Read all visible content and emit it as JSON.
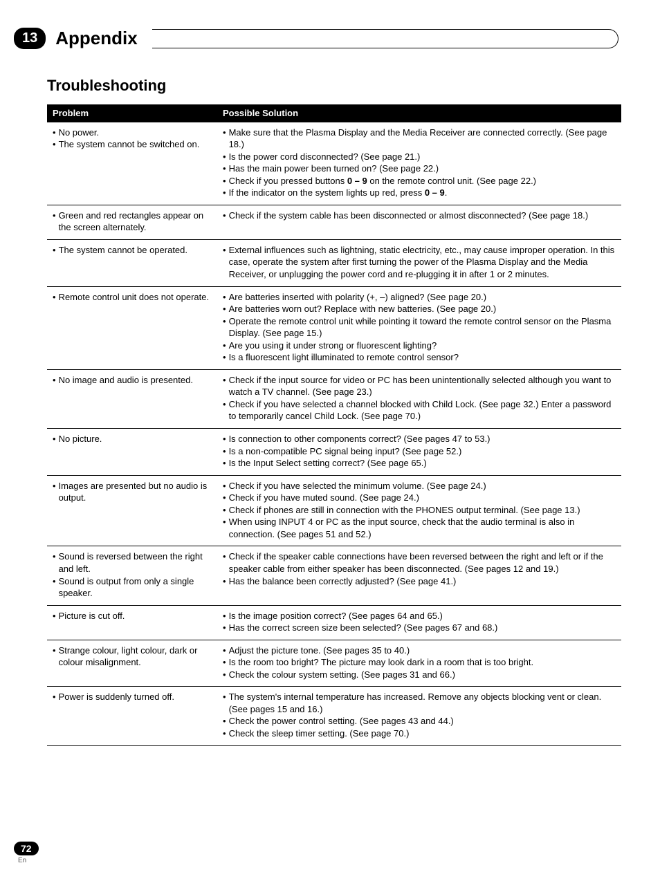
{
  "chapter": {
    "number": "13",
    "title": "Appendix"
  },
  "section_title": "Troubleshooting",
  "table": {
    "columns": [
      "Problem",
      "Possible Solution"
    ],
    "rows": [
      {
        "problem": [
          "No power.",
          "The system cannot be switched on."
        ],
        "solution": [
          {
            "t": "Make sure that the Plasma Display and the Media Receiver are connected correctly. (See page 18.)",
            "indent_after_first": true
          },
          {
            "t": "Is the power cord disconnected? (See page 21.)"
          },
          {
            "t": "Has the main power been turned on? (See page 22.)"
          },
          {
            "t_html": "Check if you pressed buttons <b>0 – 9</b> on the remote control unit. (See page 22.)"
          },
          {
            "t_html": "If the indicator on the system lights up red, press <b>0 – 9</b>."
          }
        ]
      },
      {
        "problem": [
          "Green and red rectangles appear on the screen alternately."
        ],
        "solution": [
          {
            "t": "Check if the system cable has been disconnected or almost disconnected? (See page 18.)"
          }
        ]
      },
      {
        "problem": [
          "The system cannot be operated."
        ],
        "solution": [
          {
            "t": "External influences such as lightning, static electricity, etc., may cause improper operation. In this case, operate the system after first turning the power of the Plasma Display and the Media Receiver, or unplugging the power cord and re-plugging it in after 1 or 2 minutes.",
            "indent_after_first": true
          }
        ]
      },
      {
        "problem": [
          "Remote control unit does not operate."
        ],
        "solution": [
          {
            "t": "Are batteries inserted with polarity (+, –) aligned? (See page 20.)"
          },
          {
            "t": "Are batteries worn out? Replace with new batteries. (See page 20.)"
          },
          {
            "t": "Operate the remote control unit while pointing it toward the remote control sensor on the Plasma Display. (See page 15.)",
            "indent_after_first": true
          },
          {
            "t": "Are you using it under strong or fluorescent lighting?"
          },
          {
            "t": "Is a fluorescent light illuminated to remote control sensor?"
          }
        ]
      },
      {
        "problem": [
          "No image and audio is presented."
        ],
        "solution": [
          {
            "t": "Check if the input source for video or PC has been unintentionally selected although you want to watch a TV channel. (See page 23.)",
            "indent_after_first": true
          },
          {
            "t": "Check if you have selected a channel blocked with Child Lock. (See page 32.) Enter a password to temporarily cancel Child Lock. (See page 70.)",
            "indent_after_first": true
          }
        ]
      },
      {
        "problem": [
          "No picture."
        ],
        "solution": [
          {
            "t": "Is connection to other components correct? (See pages 47 to 53.)"
          },
          {
            "t": "Is a non-compatible PC signal being input? (See page 52.)"
          },
          {
            "t": "Is the Input Select setting correct? (See page 65.)"
          }
        ]
      },
      {
        "problem": [
          "Images are presented but no audio is output."
        ],
        "solution": [
          {
            "t": "Check if you have selected the minimum volume. (See page 24.)"
          },
          {
            "t": "Check if you have muted sound. (See page 24.)"
          },
          {
            "t": "Check if phones are still in connection with the PHONES output terminal. (See page 13.)"
          },
          {
            "t": "When using INPUT 4 or PC as the input source, check that the audio terminal is also in connection. (See pages 51 and 52.)",
            "indent_after_first": true
          }
        ]
      },
      {
        "problem": [
          "Sound is reversed between the right and left.",
          "Sound is output from only a single speaker."
        ],
        "solution": [
          {
            "t": "Check if the speaker cable connections have been reversed between the right and left or if the speaker cable from either speaker has been disconnected. (See pages 12 and 19.)",
            "indent_after_first": true
          },
          {
            "t": "Has the balance been correctly adjusted? (See page 41.)"
          }
        ]
      },
      {
        "problem": [
          "Picture is cut off."
        ],
        "solution": [
          {
            "t": "Is the image position correct? (See pages 64 and 65.)"
          },
          {
            "t": "Has the correct screen size been selected? (See pages 67 and 68.)"
          }
        ]
      },
      {
        "problem": [
          "Strange colour, light colour, dark or colour misalignment."
        ],
        "solution": [
          {
            "t": "Adjust the picture tone. (See pages 35 to 40.)"
          },
          {
            "t": "Is the room too bright? The picture may look dark in a room that is too bright."
          },
          {
            "t": "Check the colour system setting. (See pages 31 and 66.)"
          }
        ]
      },
      {
        "problem": [
          "Power is suddenly turned off."
        ],
        "solution": [
          {
            "t": "The system's internal temperature has increased. Remove any objects blocking vent or clean. (See pages 15 and 16.)",
            "indent_after_first": true
          },
          {
            "t": "Check the power control setting. (See pages 43 and 44.)"
          },
          {
            "t": "Check the sleep timer setting. (See page 70.)"
          }
        ]
      }
    ]
  },
  "footer": {
    "page_number": "72",
    "lang": "En"
  },
  "style": {
    "background_color": "#ffffff",
    "text_color": "#000000",
    "header_bg": "#000000",
    "header_fg": "#ffffff",
    "body_fontsize": 13,
    "section_title_fontsize": 22,
    "chapter_title_fontsize": 26
  }
}
